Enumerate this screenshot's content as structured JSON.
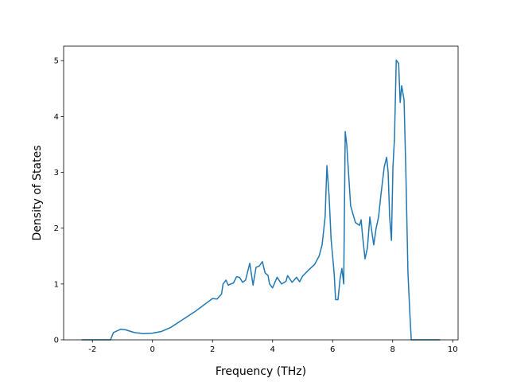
{
  "chart_data": {
    "type": "line",
    "xlabel": "Frequency (THz)",
    "ylabel": "Density of States",
    "x": [
      -2.36,
      -1.4,
      -1.3,
      -1.06,
      -0.9,
      -0.6,
      -0.3,
      0,
      0.3,
      0.6,
      1.0,
      1.4,
      1.8,
      2.0,
      2.15,
      2.3,
      2.35,
      2.45,
      2.52,
      2.7,
      2.8,
      2.9,
      3.0,
      3.1,
      3.24,
      3.35,
      3.45,
      3.55,
      3.66,
      3.75,
      3.85,
      3.9,
      4.0,
      4.15,
      4.3,
      4.45,
      4.5,
      4.65,
      4.8,
      4.9,
      5.0,
      5.2,
      5.4,
      5.55,
      5.65,
      5.75,
      5.81,
      5.88,
      5.95,
      6.05,
      6.1,
      6.18,
      6.25,
      6.31,
      6.37,
      6.42,
      6.47,
      6.6,
      6.76,
      6.9,
      6.95,
      7.0,
      7.08,
      7.16,
      7.24,
      7.29,
      7.37,
      7.45,
      7.53,
      7.61,
      7.72,
      7.8,
      7.85,
      7.9,
      7.96,
      8.01,
      8.06,
      8.09,
      8.12,
      8.2,
      8.25,
      8.3,
      8.38,
      8.44,
      8.51,
      8.57,
      8.62,
      9.58
    ],
    "series": [
      {
        "name": "DOS",
        "color": "#1f77b4",
        "values": [
          0,
          0,
          0.13,
          0.19,
          0.18,
          0.13,
          0.11,
          0.12,
          0.15,
          0.22,
          0.36,
          0.5,
          0.66,
          0.74,
          0.73,
          0.82,
          1.0,
          1.07,
          0.98,
          1.02,
          1.13,
          1.12,
          1.03,
          1.07,
          1.37,
          0.98,
          1.3,
          1.32,
          1.4,
          1.2,
          1.15,
          1.0,
          0.93,
          1.12,
          1.0,
          1.05,
          1.15,
          1.03,
          1.12,
          1.04,
          1.14,
          1.25,
          1.35,
          1.5,
          1.7,
          2.2,
          3.12,
          2.6,
          1.8,
          1.2,
          0.72,
          0.72,
          1.1,
          1.28,
          1.0,
          3.73,
          3.5,
          2.4,
          2.1,
          2.05,
          2.15,
          1.85,
          1.45,
          1.65,
          2.2,
          2.0,
          1.7,
          2.0,
          2.2,
          2.6,
          3.1,
          3.27,
          3.0,
          2.2,
          1.78,
          3.1,
          3.6,
          4.3,
          5.01,
          4.95,
          4.25,
          4.55,
          4.3,
          3.0,
          1.2,
          0.5,
          0,
          0
        ]
      }
    ],
    "xlim": [
      -2.96,
      10.18
    ],
    "xticks": [
      -2,
      0,
      2,
      4,
      6,
      8,
      10
    ],
    "ylim": [
      0,
      5.26
    ],
    "yticks": [
      0,
      1,
      2,
      3,
      4,
      5
    ]
  }
}
